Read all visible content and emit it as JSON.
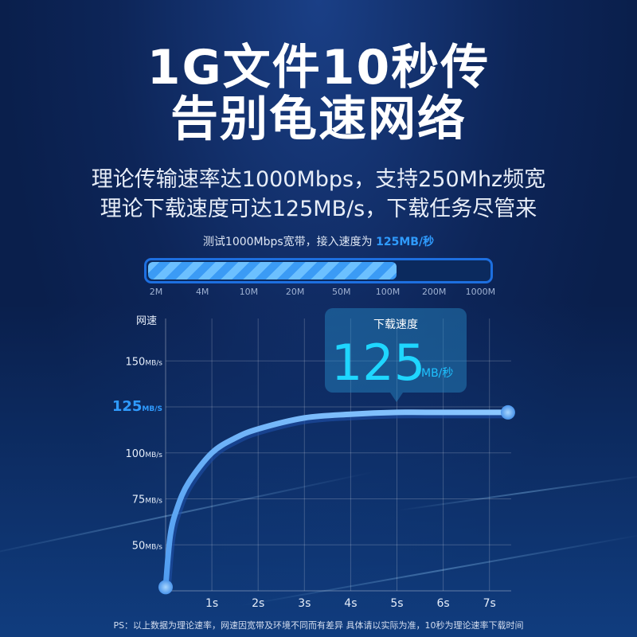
{
  "title": {
    "line1": "1G文件10秒传",
    "line2": "告别龟速网络"
  },
  "subtitle": {
    "line1": "理论传输速率达1000Mbps，支持250Mhz频宽",
    "line2": "理论下载速度可达125MB/s，下载任务尽管来"
  },
  "speed_test": {
    "label": "测试1000Mbps宽带，接入速度为",
    "highlight": "125MB/秒",
    "fill_fraction": 0.73,
    "ticks": [
      "2M",
      "4M",
      "10M",
      "20M",
      "50M",
      "100M",
      "200M",
      "1000M"
    ]
  },
  "colors": {
    "accent": "#2f9bff",
    "curve": "#6ab4ff",
    "bubble_value": "#1fd6ff"
  },
  "chart_data": {
    "type": "line",
    "ylabel": "网速",
    "unit": "MB/s",
    "ylim": [
      25,
      150
    ],
    "xlim": [
      0,
      7.4
    ],
    "grid": true,
    "yticks": [
      {
        "value": 50,
        "label": "50",
        "unit": "MB/s"
      },
      {
        "value": 75,
        "label": "75",
        "unit": "MB/s"
      },
      {
        "value": 100,
        "label": "100",
        "unit": "MB/s"
      },
      {
        "value": 125,
        "label": "125",
        "unit": "MB/S",
        "highlight": true
      },
      {
        "value": 150,
        "label": "150",
        "unit": "MB/s"
      }
    ],
    "xticks": [
      {
        "value": 1,
        "label": "1s"
      },
      {
        "value": 2,
        "label": "2s"
      },
      {
        "value": 3,
        "label": "3s"
      },
      {
        "value": 4,
        "label": "4s"
      },
      {
        "value": 5,
        "label": "5s"
      },
      {
        "value": 6,
        "label": "6s"
      },
      {
        "value": 7,
        "label": "7s"
      }
    ],
    "x": [
      0,
      0.1,
      0.25,
      0.5,
      1,
      1.5,
      2,
      3,
      4,
      5,
      6,
      7.4
    ],
    "y": [
      27,
      55,
      70,
      84,
      100,
      108,
      113,
      119,
      121,
      122,
      122,
      122
    ],
    "callout": {
      "title": "下载速度",
      "value": "125",
      "unit": "MB/秒"
    }
  },
  "footnote": "PS：以上数据为理论速率，网速因宽带及环境不同而有差异 具体请以实际为准，10秒为理论速率下载时间"
}
